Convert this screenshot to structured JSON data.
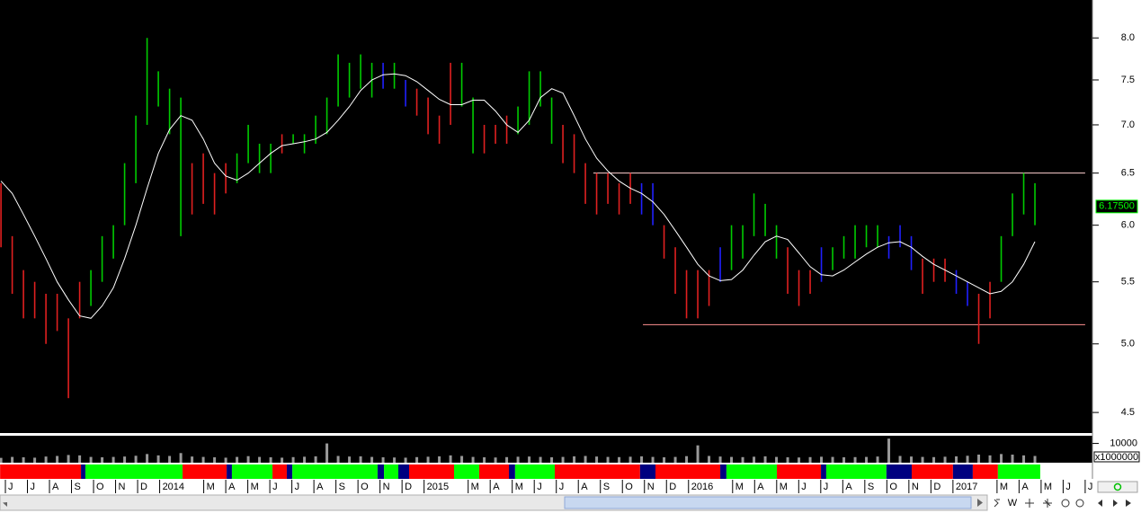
{
  "chart_data": {
    "type": "ohlc",
    "log_scale": true,
    "ylim": [
      4.36,
      8.48
    ],
    "yticks": [
      {
        "value": 4.5,
        "label": "4.5"
      },
      {
        "value": 5,
        "label": "5.0"
      },
      {
        "value": 5.5,
        "label": "5.5"
      },
      {
        "value": 6,
        "label": "6.0"
      },
      {
        "value": 6.5,
        "label": "6.5"
      },
      {
        "value": 7,
        "label": "7.0"
      },
      {
        "value": 7.5,
        "label": "7.5"
      },
      {
        "value": 8,
        "label": "8.0"
      }
    ],
    "xlim": [
      -0.245,
      49.33
    ],
    "xticks": [
      {
        "value": 0,
        "label": "J"
      },
      {
        "value": 1,
        "label": "J"
      },
      {
        "value": 2,
        "label": "A"
      },
      {
        "value": 3,
        "label": "S"
      },
      {
        "value": 4,
        "label": "O"
      },
      {
        "value": 5,
        "label": "N"
      },
      {
        "value": 6,
        "label": "D"
      },
      {
        "value": 7,
        "label": "2014"
      },
      {
        "value": 9,
        "label": "M"
      },
      {
        "value": 10,
        "label": "A"
      },
      {
        "value": 11,
        "label": "M"
      },
      {
        "value": 12,
        "label": "J"
      },
      {
        "value": 13,
        "label": "J"
      },
      {
        "value": 14,
        "label": "A"
      },
      {
        "value": 15,
        "label": "S"
      },
      {
        "value": 16,
        "label": "O"
      },
      {
        "value": 17,
        "label": "N"
      },
      {
        "value": 18,
        "label": "D"
      },
      {
        "value": 19,
        "label": "2015"
      },
      {
        "value": 21,
        "label": "M"
      },
      {
        "value": 22,
        "label": "A"
      },
      {
        "value": 23,
        "label": "M"
      },
      {
        "value": 24,
        "label": "J"
      },
      {
        "value": 25,
        "label": "J"
      },
      {
        "value": 26,
        "label": "A"
      },
      {
        "value": 27,
        "label": "S"
      },
      {
        "value": 28,
        "label": "O"
      },
      {
        "value": 29,
        "label": "N"
      },
      {
        "value": 30,
        "label": "D"
      },
      {
        "value": 31,
        "label": "2016"
      },
      {
        "value": 33,
        "label": "M"
      },
      {
        "value": 34,
        "label": "A"
      },
      {
        "value": 35,
        "label": "M"
      },
      {
        "value": 36,
        "label": "J"
      },
      {
        "value": 37,
        "label": "J"
      },
      {
        "value": 38,
        "label": "A"
      },
      {
        "value": 39,
        "label": "S"
      },
      {
        "value": 40,
        "label": "O"
      },
      {
        "value": 41,
        "label": "N"
      },
      {
        "value": 42,
        "label": "D"
      },
      {
        "value": 43,
        "label": "2017"
      },
      {
        "value": 45,
        "label": "M"
      },
      {
        "value": 46,
        "label": "A"
      },
      {
        "value": 47,
        "label": "M"
      },
      {
        "value": 48,
        "label": "J"
      },
      {
        "value": 49,
        "label": "J"
      }
    ],
    "x": [
      -0.2,
      0.31,
      0.82,
      1.33,
      1.84,
      2.35,
      2.86,
      3.37,
      3.88,
      4.39,
      4.9,
      5.41,
      5.92,
      6.43,
      6.94,
      7.45,
      7.96,
      8.47,
      8.98,
      9.49,
      10.0,
      10.51,
      11.02,
      11.53,
      12.04,
      12.55,
      13.06,
      13.57,
      14.08,
      14.59,
      15.1,
      15.61,
      16.12,
      16.63,
      17.14,
      17.65,
      18.16,
      18.67,
      19.18,
      19.69,
      20.2,
      20.71,
      21.22,
      21.73,
      22.24,
      22.75,
      23.26,
      23.77,
      24.28,
      24.79,
      25.3,
      25.81,
      26.32,
      26.83,
      27.34,
      27.85,
      28.36,
      28.87,
      29.38,
      29.89,
      30.4,
      30.91,
      31.42,
      31.93,
      32.44,
      32.95,
      33.46,
      33.97,
      34.48,
      34.99,
      35.5,
      36.01,
      36.52,
      37.03,
      37.54,
      38.05,
      38.56,
      39.07,
      39.58,
      40.09,
      40.6,
      41.11,
      41.62,
      42.13,
      42.64,
      43.15,
      43.66,
      44.17,
      44.68,
      45.19,
      45.7,
      46.21,
      46.72
    ],
    "high": [
      6.4,
      5.9,
      5.6,
      5.5,
      5.4,
      5.4,
      5.2,
      5.5,
      5.6,
      5.9,
      6.0,
      6.6,
      7.1,
      8.0,
      7.6,
      7.4,
      7.3,
      6.6,
      6.7,
      6.5,
      6.6,
      6.7,
      7.0,
      6.8,
      6.8,
      6.9,
      6.9,
      6.9,
      7.1,
      7.3,
      7.8,
      7.7,
      7.8,
      7.7,
      7.7,
      7.7,
      7.5,
      7.4,
      7.3,
      7.1,
      7.7,
      7.7,
      7.3,
      7.0,
      7.0,
      7.1,
      7.2,
      7.6,
      7.6,
      7.3,
      7.0,
      6.9,
      6.6,
      6.5,
      6.5,
      6.4,
      6.5,
      6.4,
      6.4,
      6.0,
      5.8,
      5.6,
      5.6,
      5.6,
      5.8,
      6.0,
      6.0,
      6.3,
      6.2,
      6.0,
      5.8,
      5.6,
      5.6,
      5.8,
      5.8,
      5.9,
      6.0,
      6.0,
      6.0,
      5.9,
      6.0,
      5.9,
      5.7,
      5.7,
      5.7,
      5.6,
      5.5,
      5.4,
      5.5,
      5.9,
      6.3,
      6.5,
      6.4
    ],
    "low": [
      5.8,
      5.4,
      5.2,
      5.2,
      5.0,
      5.1,
      4.6,
      5.2,
      5.3,
      5.5,
      5.7,
      6.0,
      6.4,
      7.0,
      7.2,
      6.9,
      5.9,
      6.1,
      6.2,
      6.1,
      6.3,
      6.4,
      6.6,
      6.5,
      6.5,
      6.7,
      6.8,
      6.7,
      6.8,
      6.9,
      7.2,
      7.3,
      7.4,
      7.3,
      7.4,
      7.4,
      7.2,
      7.1,
      6.9,
      6.8,
      7.0,
      7.2,
      6.7,
      6.7,
      6.8,
      6.8,
      6.9,
      7.0,
      7.2,
      6.8,
      6.6,
      6.5,
      6.2,
      6.1,
      6.2,
      6.1,
      6.2,
      6.1,
      6.0,
      5.7,
      5.4,
      5.2,
      5.2,
      5.3,
      5.5,
      5.6,
      5.7,
      5.9,
      5.9,
      5.7,
      5.4,
      5.3,
      5.4,
      5.5,
      5.6,
      5.7,
      5.7,
      5.8,
      5.8,
      5.7,
      5.8,
      5.6,
      5.4,
      5.5,
      5.5,
      5.4,
      5.3,
      5.0,
      5.2,
      5.5,
      5.9,
      6.1,
      6.0
    ],
    "moving_average": {
      "color": "#ffffff",
      "values": [
        6.42,
        6.3,
        6.1,
        5.9,
        5.7,
        5.5,
        5.35,
        5.22,
        5.2,
        5.3,
        5.45,
        5.7,
        6.0,
        6.35,
        6.7,
        6.95,
        7.1,
        7.05,
        6.85,
        6.6,
        6.47,
        6.43,
        6.5,
        6.6,
        6.7,
        6.78,
        6.8,
        6.82,
        6.85,
        6.92,
        7.05,
        7.2,
        7.38,
        7.5,
        7.56,
        7.57,
        7.55,
        7.48,
        7.38,
        7.28,
        7.22,
        7.22,
        7.27,
        7.27,
        7.15,
        7.0,
        6.92,
        7.05,
        7.3,
        7.4,
        7.35,
        7.1,
        6.85,
        6.65,
        6.52,
        6.42,
        6.35,
        6.3,
        6.22,
        6.1,
        5.95,
        5.8,
        5.65,
        5.55,
        5.51,
        5.52,
        5.6,
        5.73,
        5.85,
        5.9,
        5.87,
        5.75,
        5.63,
        5.56,
        5.55,
        5.6,
        5.67,
        5.74,
        5.8,
        5.84,
        5.85,
        5.8,
        5.72,
        5.65,
        5.6,
        5.55,
        5.5,
        5.45,
        5.4,
        5.42,
        5.5,
        5.65,
        5.85
      ]
    },
    "trend_segments": [
      {
        "start": -0.24,
        "end": 3.43,
        "color": "#ff0000",
        "bar_color": "#e02020"
      },
      {
        "start": 3.43,
        "end": 3.63,
        "color": "#000080",
        "bar_color": "#2020ff"
      },
      {
        "start": 3.63,
        "end": 8.04,
        "color": "#00ff00",
        "bar_color": "#00cc00"
      },
      {
        "start": 8.04,
        "end": 10.04,
        "color": "#ff0000",
        "bar_color": "#e02020"
      },
      {
        "start": 10.04,
        "end": 10.28,
        "color": "#000080",
        "bar_color": "#2020ff"
      },
      {
        "start": 10.28,
        "end": 12.12,
        "color": "#00ff00",
        "bar_color": "#00cc00"
      },
      {
        "start": 12.12,
        "end": 12.77,
        "color": "#ff0000",
        "bar_color": "#e02020"
      },
      {
        "start": 12.77,
        "end": 13.02,
        "color": "#000080",
        "bar_color": "#2020ff"
      },
      {
        "start": 13.02,
        "end": 16.89,
        "color": "#00ff00",
        "bar_color": "#00cc00"
      },
      {
        "start": 16.89,
        "end": 17.18,
        "color": "#000080",
        "bar_color": "#2020ff"
      },
      {
        "start": 17.18,
        "end": 17.83,
        "color": "#00ff00",
        "bar_color": "#00cc00"
      },
      {
        "start": 17.83,
        "end": 18.32,
        "color": "#000080",
        "bar_color": "#2020ff"
      },
      {
        "start": 18.32,
        "end": 20.36,
        "color": "#ff0000",
        "bar_color": "#e02020"
      },
      {
        "start": 20.36,
        "end": 21.5,
        "color": "#00ff00",
        "bar_color": "#00cc00"
      },
      {
        "start": 21.5,
        "end": 22.85,
        "color": "#ff0000",
        "bar_color": "#e02020"
      },
      {
        "start": 22.85,
        "end": 23.13,
        "color": "#000080",
        "bar_color": "#2020ff"
      },
      {
        "start": 23.13,
        "end": 24.93,
        "color": "#00ff00",
        "bar_color": "#00cc00"
      },
      {
        "start": 24.93,
        "end": 28.8,
        "color": "#ff0000",
        "bar_color": "#e02020"
      },
      {
        "start": 28.8,
        "end": 29.5,
        "color": "#000080",
        "bar_color": "#2020ff"
      },
      {
        "start": 29.5,
        "end": 32.44,
        "color": "#ff0000",
        "bar_color": "#e02020"
      },
      {
        "start": 32.44,
        "end": 32.72,
        "color": "#000080",
        "bar_color": "#2020ff"
      },
      {
        "start": 32.72,
        "end": 35.01,
        "color": "#00ff00",
        "bar_color": "#00cc00"
      },
      {
        "start": 35.01,
        "end": 37.01,
        "color": "#ff0000",
        "bar_color": "#e02020"
      },
      {
        "start": 37.01,
        "end": 37.25,
        "color": "#000080",
        "bar_color": "#2020ff"
      },
      {
        "start": 37.25,
        "end": 39.98,
        "color": "#00ff00",
        "bar_color": "#00cc00"
      },
      {
        "start": 39.98,
        "end": 41.13,
        "color": "#000080",
        "bar_color": "#2020ff"
      },
      {
        "start": 41.13,
        "end": 43.0,
        "color": "#ff0000",
        "bar_color": "#e02020"
      },
      {
        "start": 43.0,
        "end": 43.9,
        "color": "#000080",
        "bar_color": "#2020ff"
      },
      {
        "start": 43.9,
        "end": 45.04,
        "color": "#ff0000",
        "bar_color": "#e02020"
      },
      {
        "start": 45.04,
        "end": 46.96,
        "color": "#00ff00",
        "bar_color": "#00cc00"
      }
    ],
    "levels": [
      {
        "value": 6.5,
        "start": 26.68,
        "end": 49.0,
        "color": "#ffd0d0"
      },
      {
        "value": 5.15,
        "start": 28.93,
        "end": 49.0,
        "color": "#ff9090"
      }
    ],
    "last_value": {
      "value": 6.175,
      "label": "6.17500",
      "color": "#00ff00"
    },
    "volume": {
      "color": "#9a9a9a",
      "values": [
        2500,
        3000,
        2800,
        2600,
        3200,
        3500,
        4000,
        3800,
        3000,
        2800,
        3000,
        3200,
        3600,
        4500,
        3800,
        3500,
        5000,
        3200,
        3000,
        2800,
        2600,
        3000,
        3400,
        3000,
        2800,
        2600,
        2900,
        3100,
        3300,
        10000,
        3500,
        3200,
        3300,
        3000,
        2800,
        2700,
        2600,
        2900,
        3100,
        3300,
        3800,
        3500,
        3000,
        2800,
        2700,
        2900,
        3100,
        3200,
        3000,
        2800,
        3000,
        3300,
        3500,
        3200,
        3000,
        2900,
        3100,
        3300,
        3000,
        2800,
        3000,
        3400,
        9000,
        3500,
        3200,
        3000,
        2900,
        3100,
        3300,
        3000,
        2800,
        2700,
        2900,
        3100,
        3000,
        2800,
        2900,
        3000,
        3200,
        12500,
        3500,
        3200,
        3000,
        2900,
        3100,
        3300,
        3600,
        4200,
        3800,
        4500,
        4200,
        3800,
        3500
      ],
      "ylim": [
        0,
        14000
      ],
      "yticks": [
        {
          "value": 10000,
          "label": "10000"
        }
      ],
      "unit_label": "x1000000"
    },
    "toolbar_label": "W"
  }
}
